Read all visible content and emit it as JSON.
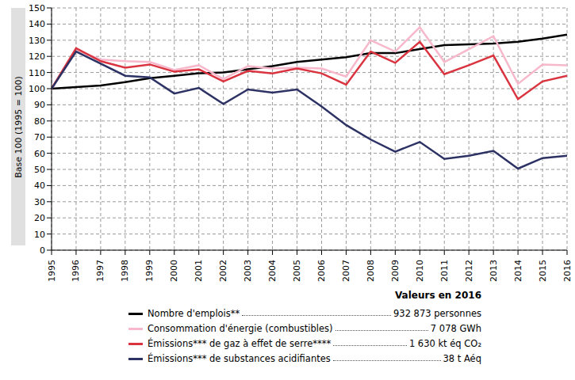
{
  "chart_data": {
    "type": "line",
    "y_label": "Base 100 (1995 = 100)",
    "legend_title": "Valeurs en 2016",
    "x": [
      1995,
      1996,
      1997,
      1998,
      1999,
      2000,
      2001,
      2002,
      2003,
      2004,
      2005,
      2006,
      2007,
      2008,
      2009,
      2010,
      2011,
      2012,
      2013,
      2014,
      2015,
      2016
    ],
    "xlim": [
      1995,
      2016
    ],
    "xticks": [
      1995,
      1996,
      1997,
      1998,
      1999,
      2000,
      2001,
      2002,
      2003,
      2004,
      2005,
      2006,
      2007,
      2008,
      2009,
      2010,
      2011,
      2012,
      2013,
      2014,
      2015,
      2016
    ],
    "ylim": [
      0,
      150
    ],
    "yticks": [
      0,
      10,
      20,
      30,
      40,
      50,
      60,
      70,
      80,
      90,
      100,
      110,
      120,
      130,
      140,
      150
    ],
    "grid": true,
    "legend": "bottom",
    "series": [
      {
        "name": "Nombre d'emplois**",
        "label_2016": "932 873 personnes",
        "color": "#000000",
        "values": [
          100,
          101,
          102,
          104,
          106.5,
          108,
          109.5,
          110,
          112,
          114,
          116.5,
          118,
          119.5,
          122,
          122,
          124.5,
          127,
          127.5,
          128,
          129,
          131,
          133.5
        ]
      },
      {
        "name": "Consommation d'énergie (combustibles)",
        "label_2016": "7 078 GWh",
        "color": "#f7b8cb",
        "values": [
          100,
          124,
          118,
          117,
          116.5,
          111.5,
          114.5,
          106,
          114,
          112.5,
          113,
          112.5,
          107.5,
          130,
          123,
          138,
          116.5,
          124.5,
          132.5,
          103,
          115,
          114.5
        ]
      },
      {
        "name": "Émissions*** de gaz à effet de serre****",
        "label_2016": "1 630 kt éq CO₂",
        "color": "#d9343f",
        "values": [
          100,
          125,
          117,
          113,
          115,
          110.5,
          112,
          104.5,
          111,
          109.5,
          112.5,
          109.5,
          102.5,
          123,
          116,
          129,
          109,
          114.5,
          120.5,
          93.5,
          104.5,
          108
        ]
      },
      {
        "name": "Émissions*** de substances acidifiantes",
        "label_2016": "38 t Aéq",
        "color": "#2d3264",
        "values": [
          100,
          123,
          115.5,
          108,
          107,
          97,
          100.5,
          90.5,
          99.5,
          97.5,
          99.5,
          89,
          77.5,
          68.5,
          61,
          67,
          56.5,
          58.5,
          61.5,
          50.5,
          57,
          58.5
        ]
      }
    ]
  }
}
